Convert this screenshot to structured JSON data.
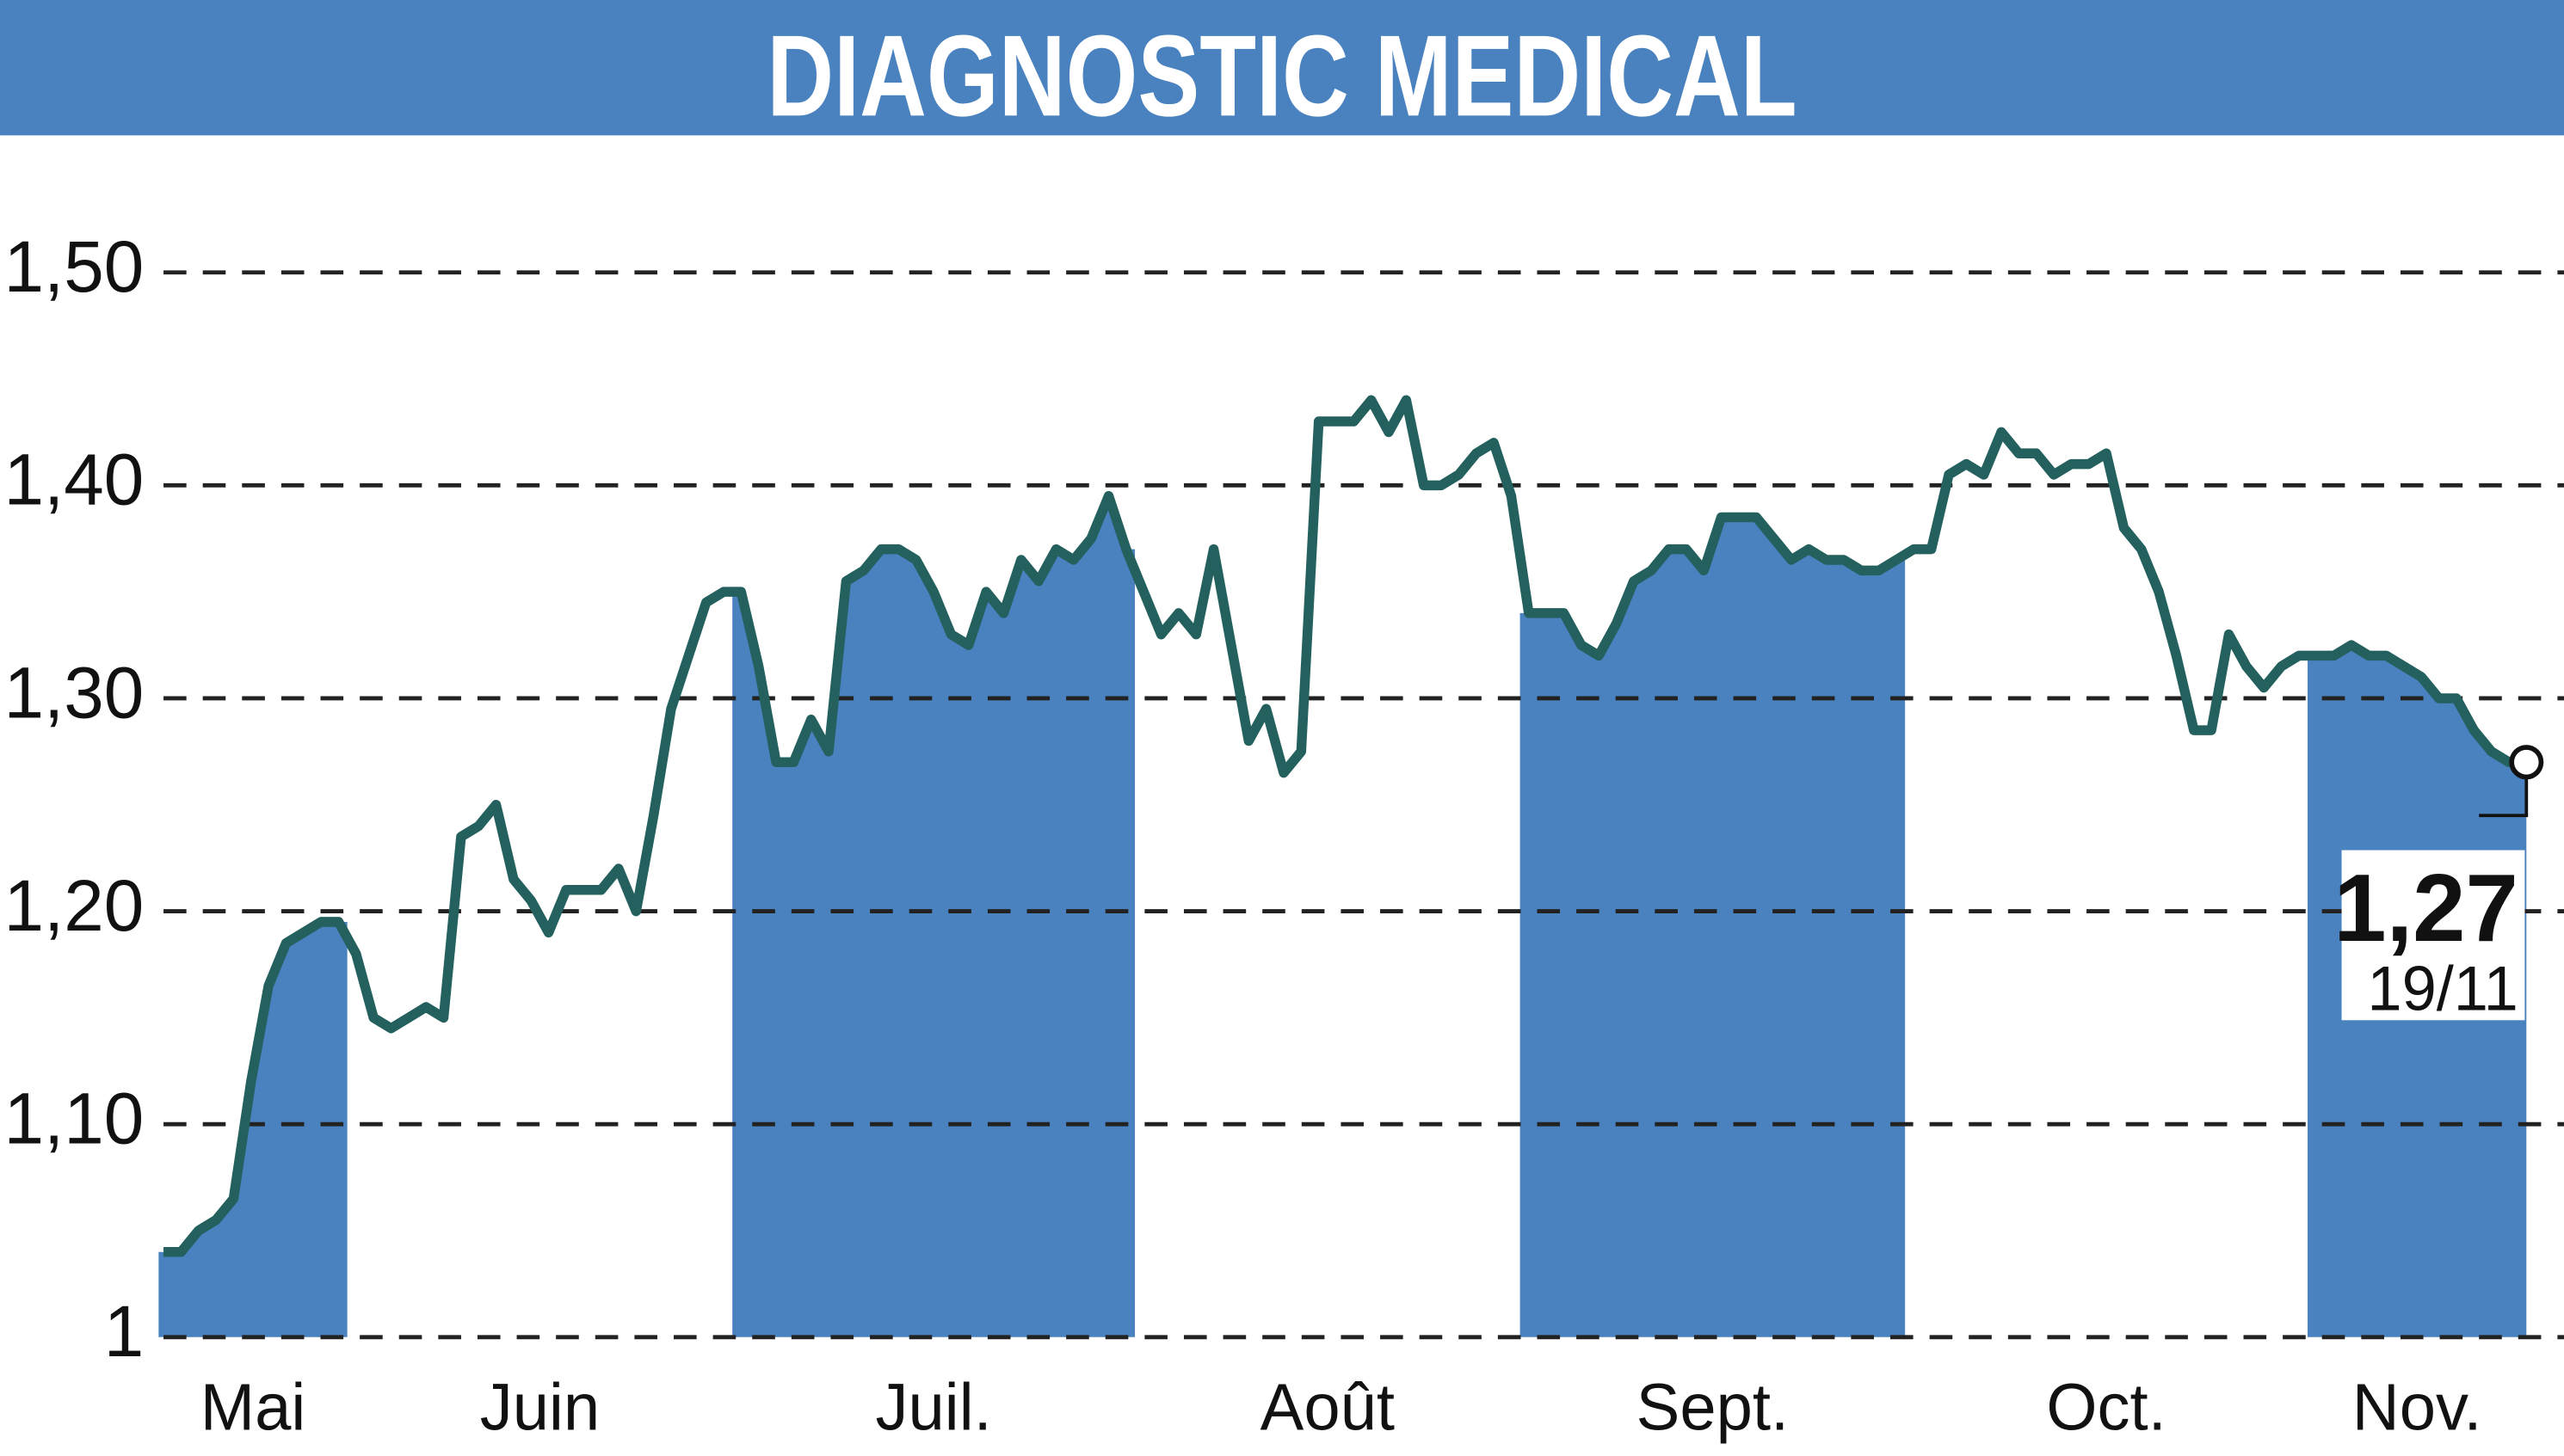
{
  "chart_data": {
    "type": "line",
    "title": "DIAGNOSTIC MEDICAL",
    "ylim": [
      1,
      1.55
    ],
    "yticks": [
      1,
      {
        "value": 1.1,
        "label": "1,10"
      },
      {
        "value": 1.2,
        "label": "1,20"
      },
      {
        "value": 1.3,
        "label": "1,30"
      },
      {
        "value": 1.4,
        "label": "1,40"
      },
      {
        "value": 1.5,
        "label": "1,50"
      }
    ],
    "grid": true,
    "color": "#23605e",
    "shade_color": "#4a82c0",
    "months": [
      {
        "label": "Mai",
        "values": [
          1.04,
          1.04,
          1.05,
          1.055,
          1.065,
          1.12,
          1.165,
          1.185,
          1.19,
          1.195,
          1.195
        ]
      },
      {
        "label": "Juin",
        "values": [
          1.18,
          1.15,
          1.145,
          1.15,
          1.155,
          1.15,
          1.235,
          1.24,
          1.25,
          1.215,
          1.205,
          1.19,
          1.21,
          1.21,
          1.21,
          1.22,
          1.2,
          1.245,
          1.295,
          1.32,
          1.345,
          1.35
        ]
      },
      {
        "label": "Juil.",
        "values": [
          1.35,
          1.315,
          1.27,
          1.27,
          1.29,
          1.275,
          1.355,
          1.36,
          1.37,
          1.37,
          1.365,
          1.35,
          1.33,
          1.325,
          1.35,
          1.34,
          1.365,
          1.355,
          1.37,
          1.365,
          1.375,
          1.395,
          1.37
        ]
      },
      {
        "label": "Août",
        "values": [
          1.35,
          1.33,
          1.34,
          1.33,
          1.37,
          1.325,
          1.28,
          1.295,
          1.265,
          1.275,
          1.43,
          1.43,
          1.43,
          1.44,
          1.425,
          1.44,
          1.4,
          1.4,
          1.405,
          1.415,
          1.42,
          1.395
        ]
      },
      {
        "label": "Sept.",
        "values": [
          1.34,
          1.34,
          1.34,
          1.325,
          1.32,
          1.335,
          1.355,
          1.36,
          1.37,
          1.37,
          1.36,
          1.385,
          1.385,
          1.385,
          1.375,
          1.365,
          1.37,
          1.365,
          1.365,
          1.36,
          1.36,
          1.365
        ]
      },
      {
        "label": "Oct.",
        "values": [
          1.37,
          1.37,
          1.405,
          1.41,
          1.405,
          1.425,
          1.415,
          1.415,
          1.405,
          1.41,
          1.41,
          1.415,
          1.38,
          1.37,
          1.35,
          1.32,
          1.285,
          1.285,
          1.33,
          1.315,
          1.305,
          1.315,
          1.32
        ]
      },
      {
        "label": "Nov.",
        "values": [
          1.32,
          1.32,
          1.325,
          1.32,
          1.32,
          1.315,
          1.31,
          1.3,
          1.3,
          1.285,
          1.275,
          1.27,
          1.27
        ]
      }
    ],
    "last": {
      "value": 1.27,
      "label": "1,27"
    },
    "last_date": "19/11"
  }
}
